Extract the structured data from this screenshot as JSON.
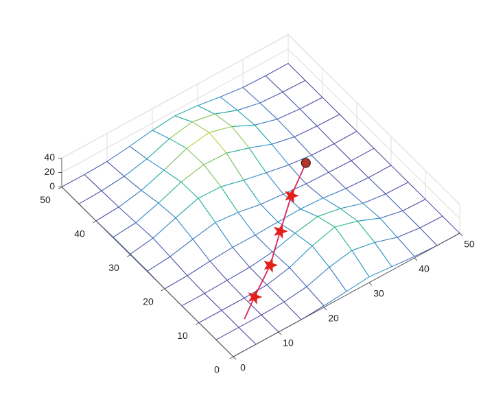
{
  "chart_data": {
    "type": "mesh",
    "x": [
      0,
      5,
      10,
      15,
      20,
      25,
      30,
      35,
      40,
      45,
      50
    ],
    "y": [
      0,
      5,
      10,
      15,
      20,
      25,
      30,
      35,
      40,
      45,
      50
    ],
    "z": [
      [
        0,
        0,
        0,
        0,
        2,
        5,
        8,
        5,
        2,
        0,
        0
      ],
      [
        0,
        0,
        0,
        1,
        5,
        15,
        21,
        15,
        5,
        1,
        0
      ],
      [
        0,
        0,
        0,
        1,
        8,
        21,
        30,
        21,
        8,
        1,
        0
      ],
      [
        0,
        0,
        1,
        2,
        6,
        15,
        21,
        15,
        5,
        1,
        0
      ],
      [
        0,
        1,
        4,
        6,
        6,
        7,
        8,
        6,
        2,
        0,
        0
      ],
      [
        1,
        4,
        11,
        17,
        14,
        8,
        5,
        2,
        1,
        0,
        0
      ],
      [
        1,
        6,
        17,
        27,
        26,
        18,
        11,
        5,
        1,
        0,
        0
      ],
      [
        1,
        4,
        14,
        26,
        33,
        32,
        22,
        10,
        3,
        1,
        0
      ],
      [
        0,
        2,
        8,
        19,
        32,
        37,
        28,
        13,
        4,
        1,
        0
      ],
      [
        0,
        1,
        4,
        11,
        22,
        28,
        22,
        10,
        3,
        1,
        0
      ],
      [
        0,
        0,
        1,
        5,
        10,
        13,
        10,
        5,
        1,
        0,
        0
      ]
    ],
    "xlim": [
      0,
      50
    ],
    "ylim": [
      0,
      50
    ],
    "zlim": [
      0,
      40
    ],
    "xticks": [
      0,
      10,
      20,
      30,
      40,
      50
    ],
    "yticks": [
      0,
      10,
      20,
      30,
      40,
      50
    ],
    "zticks": [
      0,
      20,
      40
    ],
    "grid": true,
    "colormap": "parula",
    "path": {
      "x": [
        7,
        11.5,
        18,
        24,
        31,
        38
      ],
      "y": [
        6,
        9,
        13,
        18,
        24,
        29
      ],
      "z": [
        0,
        1,
        4,
        7,
        4,
        2
      ],
      "color": "#d8336b",
      "markers": [
        "none",
        "star",
        "star",
        "star",
        "star",
        "circle"
      ],
      "marker_color": "#e3211c",
      "end_color": "#b8352c"
    }
  }
}
